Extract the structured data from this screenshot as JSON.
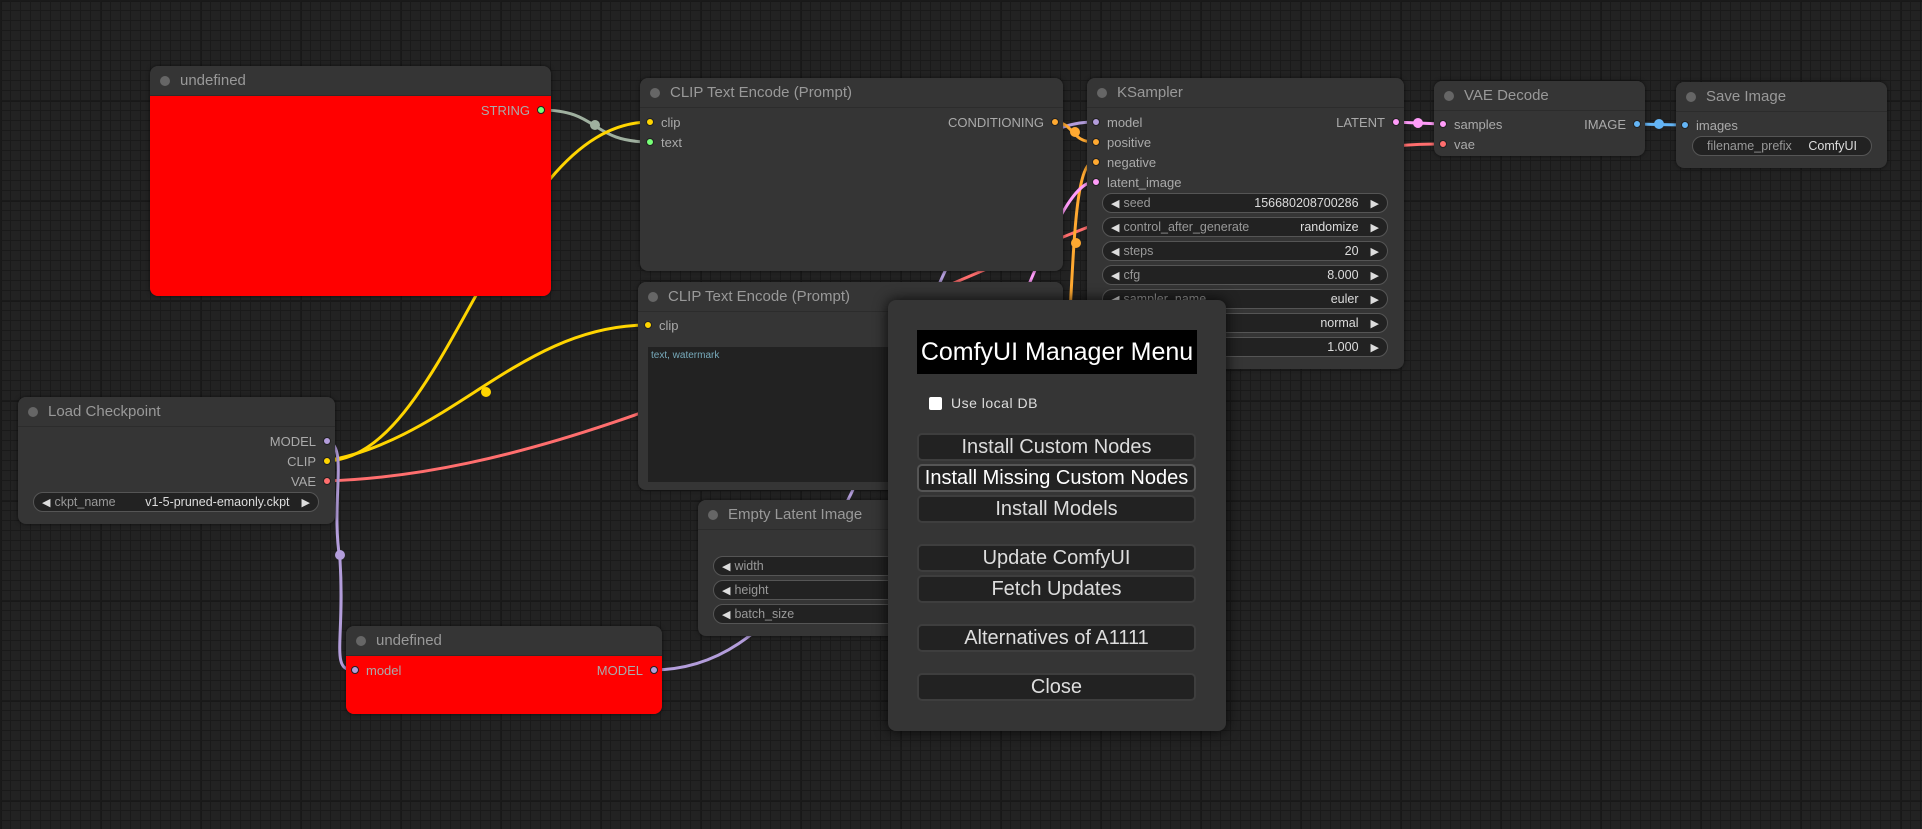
{
  "colors": {
    "model": "#b39ddb",
    "clip": "#ffd500",
    "vae": "#ff6e6e",
    "string": "#77ff77",
    "conditioning": "#ffa931",
    "latent": "#ff9cf9",
    "image": "#64b5f6",
    "error_node": "#ff0000"
  },
  "nodes": {
    "undefined_top": {
      "title": "undefined",
      "outputs": [
        "STRING"
      ]
    },
    "clip1": {
      "title": "CLIP Text Encode (Prompt)",
      "inputs": [
        "clip",
        "text"
      ],
      "outputs": [
        "CONDITIONING"
      ]
    },
    "clip2": {
      "title": "CLIP Text Encode (Prompt)",
      "inputs": [
        "clip"
      ],
      "text": "text, watermark"
    },
    "ksampler": {
      "title": "KSampler",
      "inputs": [
        "model",
        "positive",
        "negative",
        "latent_image"
      ],
      "outputs": [
        "LATENT"
      ],
      "widgets": [
        {
          "label": "seed",
          "value": "156680208700286"
        },
        {
          "label": "control_after_generate",
          "value": "randomize"
        },
        {
          "label": "steps",
          "value": "20"
        },
        {
          "label": "cfg",
          "value": "8.000"
        },
        {
          "label": "sampler_name",
          "value": "euler"
        },
        {
          "label": "",
          "value": "normal"
        },
        {
          "label": "",
          "value": "1.000"
        }
      ]
    },
    "vae_decode": {
      "title": "VAE Decode",
      "inputs": [
        "samples",
        "vae"
      ],
      "outputs": [
        "IMAGE"
      ]
    },
    "save_image": {
      "title": "Save Image",
      "inputs": [
        "images"
      ],
      "widget": {
        "label": "filename_prefix",
        "value": "ComfyUI"
      }
    },
    "load_checkpoint": {
      "title": "Load Checkpoint",
      "outputs": [
        "MODEL",
        "CLIP",
        "VAE"
      ],
      "widget": {
        "label": "ckpt_name",
        "value": "v1-5-pruned-emaonly.ckpt"
      }
    },
    "empty_latent": {
      "title": "Empty Latent Image",
      "widgets": [
        "width",
        "height",
        "batch_size"
      ]
    },
    "undefined_bottom": {
      "title": "undefined",
      "inputs": [
        "model"
      ],
      "outputs": [
        "MODEL"
      ]
    }
  },
  "menu": {
    "title": "ComfyUI Manager Menu",
    "checkbox": {
      "label": "Use local DB",
      "checked": false
    },
    "buttons": [
      "Install Custom Nodes",
      "Install Missing Custom Nodes",
      "Install Models",
      "Update ComfyUI",
      "Fetch Updates",
      "Alternatives of A1111",
      "Close"
    ]
  }
}
